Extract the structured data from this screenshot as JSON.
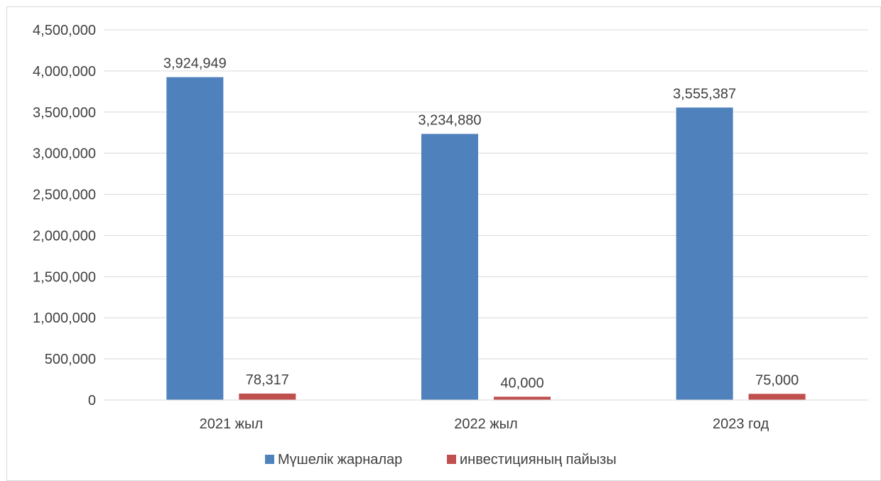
{
  "chart_data": {
    "type": "bar",
    "categories": [
      "2021 жыл",
      "2022 жыл",
      "2023 год"
    ],
    "series": [
      {
        "name": "Мүшелік жарналар",
        "values": [
          3924949,
          3234880,
          3555387
        ],
        "color": "#4F81BD"
      },
      {
        "name": "инвестицияның пайызы",
        "values": [
          78317,
          40000,
          75000
        ],
        "color": "#C0504D"
      }
    ],
    "data_labels": [
      [
        "3,924,949",
        "3,234,880",
        "3,555,387"
      ],
      [
        "78,317",
        "40,000",
        "75,000"
      ]
    ],
    "y_ticks": [
      "0",
      "500,000",
      "1,000,000",
      "1,500,000",
      "2,000,000",
      "2,500,000",
      "3,000,000",
      "3,500,000",
      "4,000,000",
      "4,500,000"
    ],
    "ylim": [
      0,
      4500000
    ],
    "grid": true,
    "legend_position": "bottom",
    "title": "",
    "xlabel": "",
    "ylabel": ""
  }
}
